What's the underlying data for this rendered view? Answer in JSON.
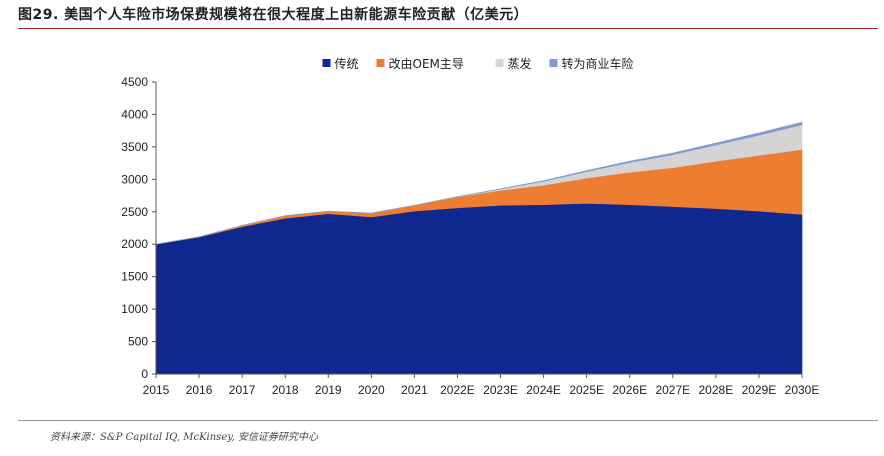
{
  "figure": {
    "title": "图29. 美国个人车险市场保费规模将在很大程度上由新能源车险贡献（亿美元）",
    "source": "资料来源：S&P Capital IQ, McKinsey, 安信证券研究中心"
  },
  "chart_data": {
    "type": "area",
    "stacked": true,
    "title": "",
    "xlabel": "",
    "ylabel": "",
    "categories": [
      "2015",
      "2016",
      "2017",
      "2018",
      "2019",
      "2020",
      "2021",
      "2022E",
      "2023E",
      "2024E",
      "2025E",
      "2026E",
      "2027E",
      "2028E",
      "2029E",
      "2030E"
    ],
    "ylim": [
      0,
      4500
    ],
    "yticks": [
      0,
      500,
      1000,
      1500,
      2000,
      2500,
      3000,
      3500,
      4000,
      4500
    ],
    "grid": false,
    "legend_position": "top",
    "series": [
      {
        "name": "传统",
        "color": "#0f2890",
        "values": [
          2000,
          2110,
          2270,
          2400,
          2470,
          2420,
          2510,
          2560,
          2600,
          2610,
          2630,
          2610,
          2580,
          2550,
          2510,
          2460
        ]
      },
      {
        "name": "改由OEM主导",
        "color": "#ed7d31",
        "values": [
          0,
          5,
          20,
          40,
          40,
          60,
          90,
          170,
          230,
          300,
          390,
          500,
          600,
          730,
          860,
          1000
        ]
      },
      {
        "name": "蒸发",
        "color": "#d4d4d4",
        "values": [
          0,
          0,
          0,
          0,
          0,
          0,
          0,
          5,
          20,
          60,
          100,
          150,
          200,
          250,
          310,
          380
        ]
      },
      {
        "name": "转为商业车险",
        "color": "#7f9bd1",
        "values": [
          0,
          0,
          0,
          0,
          0,
          0,
          0,
          0,
          5,
          10,
          15,
          20,
          25,
          30,
          35,
          40
        ]
      }
    ]
  }
}
